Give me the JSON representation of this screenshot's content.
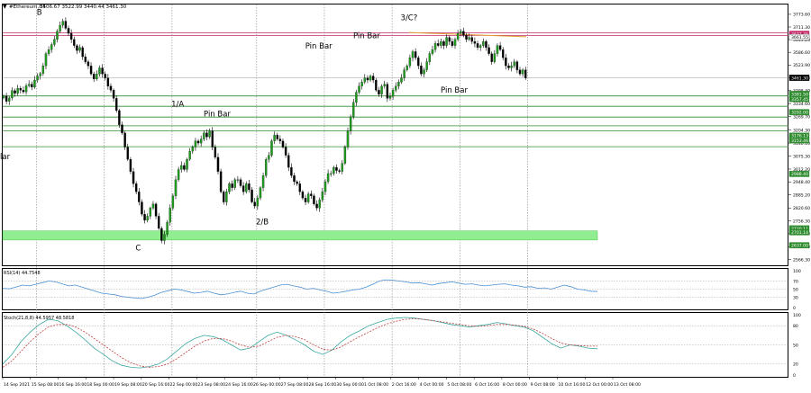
{
  "header": {
    "symbol": "#Ethereum,H4",
    "ohlc": "3506.67 3522.99 3440.44 3461.30"
  },
  "annotations": [
    {
      "text": "B",
      "x": "2021-09-16 04:00",
      "y": 3770
    },
    {
      "text": "C",
      "x": "2021-09-22 00:00",
      "y": 2612
    },
    {
      "text": "1/A",
      "x": "2021-09-24 08:00",
      "y": 3320
    },
    {
      "text": "2/B",
      "x": "2021-09-29 08:00",
      "y": 2740
    },
    {
      "text": "3/C?",
      "x": "2021-10-08 00:00",
      "y": 3745
    },
    {
      "text": "Pin Bar",
      "x": "2021-09-26 16:00",
      "y": 3272
    },
    {
      "text": "Pin Bar",
      "x": "2021-10-02 16:00",
      "y": 3605
    },
    {
      "text": "Pin Bar",
      "x": "2021-10-05 12:00",
      "y": 3655
    },
    {
      "text": "Pin Bar",
      "x": "2021-10-10 16:00",
      "y": 3388
    },
    {
      "text": "lar",
      "x": "2021-09-14 00:00",
      "y": 3060
    }
  ],
  "chart_data": [
    {
      "type": "candlestick",
      "title": "#Ethereum,H4",
      "ylim": [
        2534,
        3822
      ],
      "y_ticks": [
        3773.6,
        3711.3,
        3649.2,
        3586.6,
        3523.9,
        3461.3,
        3398.4,
        3334.6,
        3269.7,
        3204.3,
        3140.1,
        3075.3,
        3012.2,
        2948.4,
        2885.2,
        2820.6,
        2756.3,
        2693.9,
        2629.8,
        2566.3
      ],
      "x_labels": [
        "14 Sep 2021",
        "15 Sep 08:00",
        "16 Sep 16:00",
        "18 Sep 00:00",
        "19 Sep 08:00",
        "20 Sep 16:00",
        "22 Sep 00:00",
        "23 Sep 08:00",
        "24 Sep 16:00",
        "26 Sep 00:00",
        "27 Sep 08:00",
        "28 Sep 16:00",
        "30 Sep 00:00",
        "1 Oct 08:00",
        "2 Oct 16:00",
        "4 Oct 00:00",
        "5 Oct 08:00",
        "6 Oct 16:00",
        "8 Oct 00:00",
        "9 Oct 08:00",
        "10 Oct 16:00",
        "12 Oct 00:00",
        "13 Oct 08:00"
      ],
      "day_separators": [
        "16 Sep",
        "20 Sep",
        "24 Sep",
        "29 Sep",
        "3 Oct",
        "7 Oct",
        "11 Oct",
        "15 Oct"
      ],
      "price_labels": [
        {
          "value": 3677.36,
          "kind": "red"
        },
        {
          "value": 3661.55,
          "kind": "plain"
        },
        {
          "value": 3461.3,
          "kind": "current"
        },
        {
          "value": 3381.5,
          "kind": "green"
        },
        {
          "value": 3357.45,
          "kind": "green"
        },
        {
          "value": 3292.0,
          "kind": "green"
        },
        {
          "value": 3176.13,
          "kind": "green"
        },
        {
          "value": 3153.46,
          "kind": "green"
        },
        {
          "value": 2988.4,
          "kind": "green"
        },
        {
          "value": 2720.11,
          "kind": "green"
        },
        {
          "value": 2701.14,
          "kind": "green"
        },
        {
          "value": 2637.0,
          "kind": "green"
        }
      ],
      "horizontal_levels": {
        "red": [
          3683,
          3670
        ],
        "green": [
          3372,
          3321,
          3268,
          3225,
          3200,
          3122
        ]
      },
      "support_zone": [
        2663,
        2708
      ],
      "trendline": {
        "from": [
          "2021-10-08 00:00",
          3684
        ],
        "to": [
          "2021-10-13 08:00",
          3610
        ]
      },
      "candles": [
        3372,
        3345,
        3362,
        3398,
        3385,
        3410,
        3400,
        3392,
        3422,
        3430,
        3415,
        3450,
        3470,
        3482,
        3520,
        3580,
        3600,
        3625,
        3650,
        3690,
        3720,
        3740,
        3705,
        3680,
        3650,
        3620,
        3595,
        3610,
        3565,
        3540,
        3520,
        3480,
        3455,
        3480,
        3510,
        3480,
        3460,
        3420,
        3400,
        3360,
        3300,
        3230,
        3190,
        3120,
        3060,
        3000,
        2940,
        2900,
        2850,
        2790,
        2760,
        2780,
        2820,
        2840,
        2780,
        2720,
        2660,
        2690,
        2750,
        2820,
        2880,
        2960,
        3010,
        3030,
        3010,
        3060,
        3100,
        3120,
        3150,
        3140,
        3160,
        3190,
        3170,
        3200,
        3120,
        3070,
        3000,
        2900,
        2850,
        2900,
        2940,
        2920,
        2960,
        2960,
        2930,
        2900,
        2940,
        2910,
        2850,
        2830,
        2870,
        2920,
        2980,
        3060,
        3080,
        3150,
        3180,
        3160,
        3150,
        3120,
        3080,
        3020,
        2980,
        2950,
        2940,
        2900,
        2870,
        2850,
        2890,
        2880,
        2840,
        2820,
        2860,
        2900,
        2950,
        2990,
        2990,
        3020,
        3005,
        3000,
        3040,
        3120,
        3200,
        3270,
        3340,
        3390,
        3420,
        3440,
        3460,
        3450,
        3470,
        3450,
        3400,
        3380,
        3420,
        3430,
        3360,
        3370,
        3400,
        3420,
        3440,
        3460,
        3500,
        3520,
        3560,
        3590,
        3560,
        3520,
        3480,
        3500,
        3540,
        3580,
        3600,
        3630,
        3620,
        3640,
        3620,
        3660,
        3640,
        3620,
        3650,
        3680,
        3690,
        3670,
        3650,
        3660,
        3640,
        3630,
        3610,
        3620,
        3640,
        3610,
        3580,
        3540,
        3580,
        3620,
        3600,
        3560,
        3520,
        3510,
        3520,
        3540,
        3500,
        3480,
        3500,
        3460
      ]
    },
    {
      "type": "line",
      "title": "RSI(14) 44.7548",
      "ylim": [
        0,
        100
      ],
      "y_ticks": [
        70,
        50,
        30
      ],
      "values": [
        52,
        51,
        55,
        60,
        58,
        62,
        66,
        70,
        68,
        63,
        58,
        60,
        55,
        50,
        45,
        40,
        38,
        36,
        32,
        30,
        28,
        27,
        30,
        35,
        42,
        46,
        50,
        48,
        44,
        40,
        42,
        45,
        40,
        36,
        38,
        42,
        45,
        40,
        38,
        45,
        50,
        55,
        60,
        62,
        58,
        55,
        50,
        52,
        48,
        45,
        40,
        42,
        45,
        48,
        50,
        55,
        62,
        70,
        73,
        72,
        70,
        68,
        65,
        66,
        63,
        60,
        64,
        66,
        68,
        65,
        62,
        63,
        60,
        58,
        60,
        62,
        63,
        60,
        58,
        55,
        56,
        52,
        53,
        50,
        55,
        60,
        56,
        50,
        48,
        45,
        44
      ]
    },
    {
      "type": "line",
      "title": "Stoch(21,8,8) 44.5957 48.5818",
      "ylim": [
        0,
        100
      ],
      "y_ticks": [
        80,
        50,
        20
      ],
      "series": [
        {
          "values": [
            20,
            35,
            55,
            70,
            82,
            90,
            88,
            80,
            70,
            58,
            45,
            35,
            25,
            18,
            15,
            14,
            16,
            20,
            28,
            40,
            52,
            60,
            65,
            63,
            58,
            50,
            42,
            45,
            55,
            65,
            70,
            65,
            58,
            50,
            40,
            35,
            42,
            55,
            65,
            72,
            80,
            85,
            90,
            92,
            93,
            92,
            90,
            88,
            85,
            82,
            80,
            78,
            80,
            82,
            85,
            83,
            80,
            78,
            72,
            62,
            52,
            45,
            50,
            48,
            45,
            44
          ]
        },
        {
          "values": [
            15,
            25,
            40,
            55,
            68,
            78,
            82,
            82,
            78,
            70,
            60,
            50,
            40,
            30,
            22,
            17,
            15,
            16,
            20,
            28,
            38,
            48,
            56,
            60,
            60,
            56,
            50,
            46,
            48,
            55,
            62,
            65,
            63,
            58,
            50,
            43,
            42,
            47,
            55,
            63,
            70,
            77,
            83,
            87,
            90,
            91,
            90,
            88,
            86,
            84,
            82,
            80,
            79,
            80,
            82,
            82,
            81,
            79,
            75,
            68,
            60,
            53,
            50,
            49,
            48,
            48
          ]
        }
      ]
    }
  ]
}
